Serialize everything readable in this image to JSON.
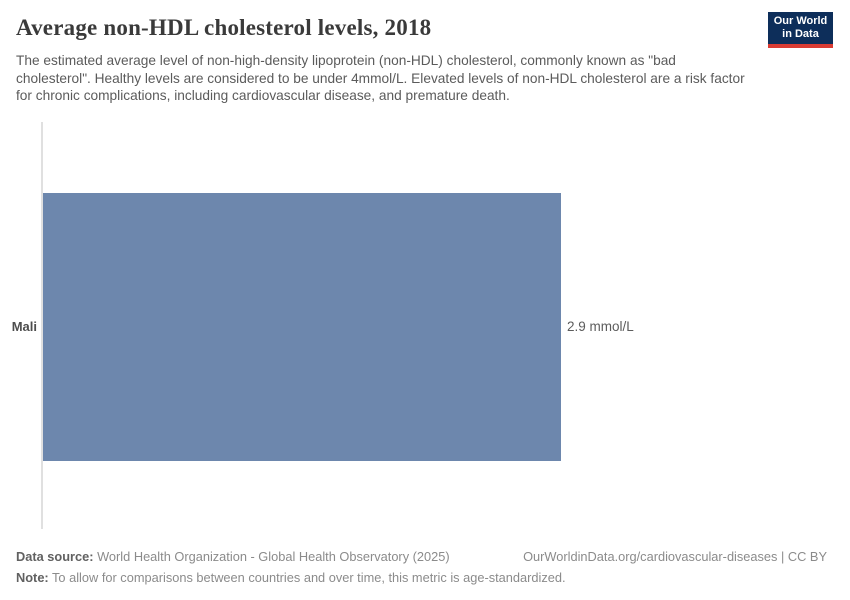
{
  "header": {
    "title": "Average non-HDL cholesterol levels, 2018",
    "subtitle": "The estimated average level of non-high-density lipoprotein (non-HDL) cholesterol, commonly known as \"bad cholesterol\". Healthy levels are considered to be under 4mmol/L. Elevated levels of non-HDL cholesterol are a risk factor for chronic complications, including cardiovascular disease, and premature death.",
    "logo": {
      "line1": "Our World",
      "line2": "in Data",
      "bg_color": "#0d2e5a",
      "accent_color": "#d93b33"
    }
  },
  "chart_data": {
    "type": "bar",
    "orientation": "horizontal",
    "title": "Average non-HDL cholesterol levels, 2018",
    "categories": [
      "Mali"
    ],
    "values": [
      2.9
    ],
    "value_labels": [
      "2.9 mmol/L"
    ],
    "unit": "mmol/L",
    "xlabel": "",
    "ylabel": "",
    "xlim": [
      0,
      2.9
    ],
    "grid": false,
    "legend": "none",
    "bar_color": "#6d87ad",
    "axis_line_color": "#e0e0e0"
  },
  "footer": {
    "datasource_label": "Data source:",
    "datasource_text": " World Health Organization - Global Health Observatory (2025)",
    "link": "OurWorldinData.org/cardiovascular-diseases | CC BY",
    "note_label": "Note:",
    "note_text": " To allow for comparisons between countries and over time, this metric is age-standardized."
  }
}
